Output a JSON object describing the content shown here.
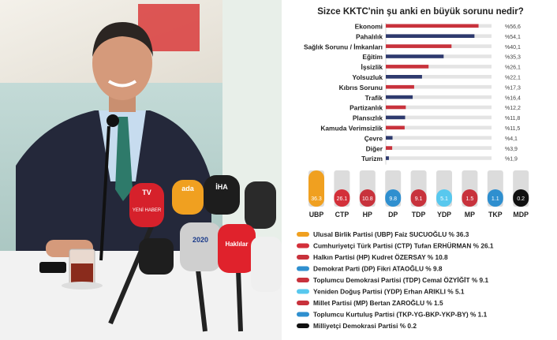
{
  "chart_data": [
    {
      "type": "bar",
      "orientation": "horizontal",
      "title": "Sizce KKTC'nin şu anki en büyük sorunu nedir?",
      "categories": [
        "Ekonomi",
        "Pahalılık",
        "Sağlık Sorunu / İmkanları",
        "Eğitim",
        "İşsizlik",
        "Yolsuzluk",
        "Kıbrıs Sorunu",
        "Trafik",
        "Partizanlık",
        "Plansızlık",
        "Kamuda Verimsizlik",
        "Çevre",
        "Diğer",
        "Turizm"
      ],
      "values": [
        56.6,
        54.1,
        40.1,
        35.3,
        26.1,
        22.1,
        17.3,
        16.4,
        12.2,
        11.8,
        11.5,
        4.1,
        3.9,
        1.9
      ],
      "value_labels": [
        "%56,6",
        "%54,1",
        "%40,1",
        "%35,3",
        "%26,1",
        "%22,1",
        "%17,3",
        "%16,4",
        "%12,2",
        "%11,8",
        "%11,5",
        "%4,1",
        "%3,9",
        "%1,9"
      ],
      "bar_colors": [
        "#c8323c",
        "#2e3a6e",
        "#c8323c",
        "#2e3a6e",
        "#c8323c",
        "#2e3a6e",
        "#c8323c",
        "#2e3a6e",
        "#c8323c",
        "#2e3a6e",
        "#c8323c",
        "#2e3a6e",
        "#c8323c",
        "#2e3a6e"
      ],
      "xlim": [
        0,
        100
      ],
      "grid": false
    },
    {
      "type": "bar",
      "orientation": "vertical",
      "categories": [
        "UBP",
        "CTP",
        "HP",
        "DP",
        "TDP",
        "YDP",
        "MP",
        "TKP",
        "MDP"
      ],
      "values": [
        36.3,
        26.1,
        10.8,
        9.8,
        9.1,
        5.1,
        1.5,
        1.1,
        0.2
      ],
      "value_labels": [
        "36.3",
        "26.1",
        "10.8",
        "9.8",
        "9.1",
        "5.1",
        "1.5",
        "1.1",
        "0.2"
      ],
      "colors": [
        "#f0a020",
        "#d3303a",
        "#c8323c",
        "#2f8fcf",
        "#c8323c",
        "#58c8ee",
        "#c8323c",
        "#2f8fcf",
        "#111111"
      ],
      "legend": [
        {
          "label": "Ulusal Birlik Partisi (UBP) Faiz SUCUOĞLU % 36.3",
          "color": "#f0a020"
        },
        {
          "label": "Cumhuriyetçi Türk Partisi (CTP) Tufan ERHÜRMAN % 26.1",
          "color": "#d3303a"
        },
        {
          "label": "Halkın Partisi (HP) Kudret ÖZERSAY % 10.8",
          "color": "#c8323c"
        },
        {
          "label": "Demokrat Parti (DP) Fikri ATAOĞLU % 9.8",
          "color": "#2f8fcf"
        },
        {
          "label": "Toplumcu Demokrasi Partisi (TDP) Cemal ÖZYİĞİT % 9.1",
          "color": "#c8323c"
        },
        {
          "label": "Yeniden Doğuş Partisi (YDP) Erhan ARIKLI % 5.1",
          "color": "#58c8ee"
        },
        {
          "label": "Millet Partisi (MP) Bertan ZAROĞLU % 1.5",
          "color": "#c8323c"
        },
        {
          "label": "Toplumcu Kurtuluş Partisi (TKP-YG-BKP-YKP-BY) % 1.1",
          "color": "#2f8fcf"
        },
        {
          "label": "Milliyetçi Demokrasi Partisi % 0.2",
          "color": "#111111"
        }
      ]
    }
  ],
  "photo": {
    "mic_logos": [
      "TV",
      "ada",
      "İHA",
      "YENİ HABER",
      "2020",
      "Haklılar"
    ]
  }
}
